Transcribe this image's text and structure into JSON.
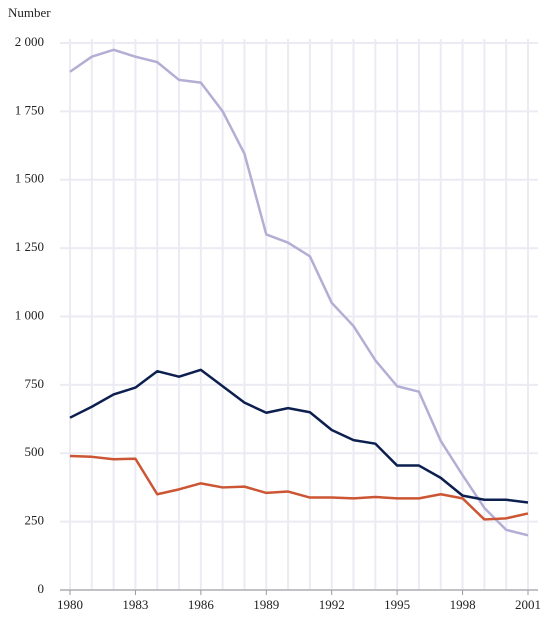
{
  "chart_data": {
    "type": "line",
    "y_label": "Number",
    "x": [
      1980,
      1981,
      1982,
      1983,
      1984,
      1985,
      1986,
      1987,
      1988,
      1989,
      1990,
      1991,
      1992,
      1993,
      1994,
      1995,
      1996,
      1997,
      1998,
      1999,
      2000,
      2001
    ],
    "series": [
      {
        "color": "#b3aed4",
        "values": [
          1895,
          1950,
          1975,
          1950,
          1930,
          1865,
          1855,
          1750,
          1595,
          1300,
          1270,
          1220,
          1050,
          965,
          840,
          745,
          725,
          545,
          420,
          300,
          220,
          200
        ]
      },
      {
        "color": "#0c1f4f",
        "values": [
          630,
          670,
          715,
          740,
          800,
          780,
          805,
          745,
          685,
          648,
          665,
          650,
          585,
          548,
          535,
          455,
          455,
          410,
          345,
          330,
          330,
          320
        ]
      },
      {
        "color": "#cc5533",
        "values": [
          490,
          487,
          478,
          480,
          350,
          368,
          390,
          375,
          378,
          355,
          360,
          338,
          338,
          335,
          340,
          335,
          335,
          350,
          335,
          258,
          262,
          280
        ]
      }
    ],
    "xlim": [
      1980,
      2001
    ],
    "xticks": [
      1980,
      1983,
      1986,
      1989,
      1992,
      1995,
      1998,
      2001
    ],
    "ylim": [
      0,
      2000
    ],
    "yticks": [
      0,
      250,
      500,
      750,
      {
        "value": 1000,
        "label": "1 000"
      },
      {
        "value": 1250,
        "label": "1 250"
      },
      {
        "value": 1500,
        "label": "1 500"
      },
      {
        "value": 1750,
        "label": "1 750"
      },
      {
        "value": 2000,
        "label": "2 000"
      }
    ],
    "grid": true
  }
}
